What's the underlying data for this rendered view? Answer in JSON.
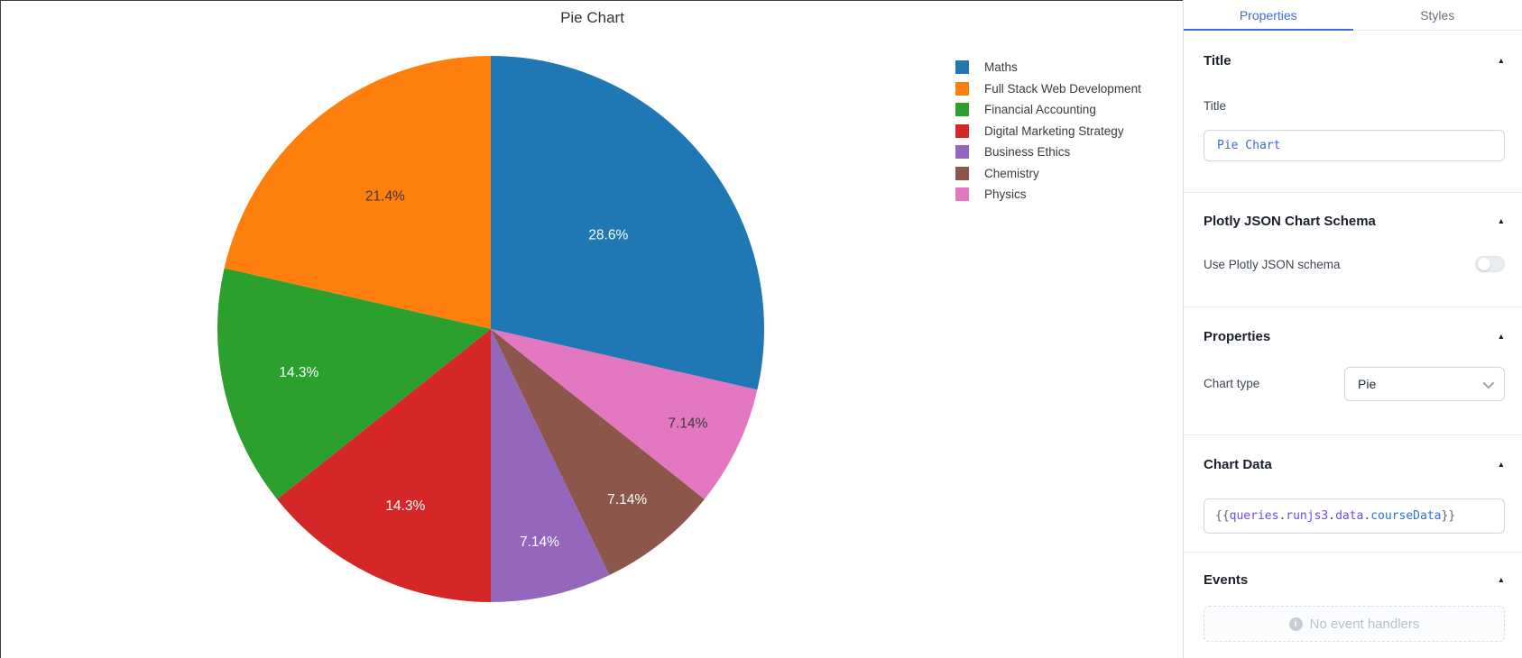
{
  "chart_data": {
    "type": "pie",
    "title": "Pie Chart",
    "labels": [
      "Maths",
      "Full Stack Web Development",
      "Financial Accounting",
      "Digital Marketing Strategy",
      "Business Ethics",
      "Chemistry",
      "Physics"
    ],
    "values": [
      4,
      3,
      2,
      2,
      1,
      1,
      1
    ],
    "percent_labels": [
      "28.6%",
      "21.4%",
      "14.3%",
      "14.3%",
      "7.14%",
      "7.14%",
      "7.14%"
    ],
    "colors": [
      "#1f77b4",
      "#ff7f0e",
      "#2ca02c",
      "#d62728",
      "#9467bd",
      "#8c564b",
      "#e377c2"
    ],
    "slice_text_colors": [
      "#ffffff",
      "#3a3a3a",
      "#ffffff",
      "#ffffff",
      "#ffffff",
      "#ffffff",
      "#3a3a3a"
    ],
    "legend_position": "right",
    "grid": false
  },
  "panel": {
    "tabs": [
      {
        "label": "Properties"
      },
      {
        "label": "Styles"
      }
    ],
    "sections": {
      "title": {
        "heading": "Title",
        "field_label": "Title",
        "field_value": "Pie Chart"
      },
      "plotly": {
        "heading": "Plotly JSON Chart Schema",
        "toggle_label": "Use Plotly JSON schema",
        "toggle_on": false
      },
      "properties": {
        "heading": "Properties",
        "chart_type_label": "Chart type",
        "chart_type_value": "Pie"
      },
      "chart_data_section": {
        "heading": "Chart Data",
        "value": "{{queries.runjs3.data.courseData}}",
        "tokens": [
          {
            "t": "{{",
            "c": "#5c6470"
          },
          {
            "t": "queries",
            "c": "#7048e8"
          },
          {
            "t": ".",
            "c": "#434a54"
          },
          {
            "t": "runjs3",
            "c": "#7048e8"
          },
          {
            "t": ".",
            "c": "#434a54"
          },
          {
            "t": "data",
            "c": "#7048e8"
          },
          {
            "t": ".",
            "c": "#434a54"
          },
          {
            "t": "courseData",
            "c": "#2f6fd6"
          },
          {
            "t": "}}",
            "c": "#5c6470"
          }
        ]
      },
      "events": {
        "heading": "Events",
        "empty_message": "No event handlers",
        "info_glyph": "i"
      }
    },
    "collapse_glyph": "▲",
    "accent_color": "#4368e1"
  }
}
